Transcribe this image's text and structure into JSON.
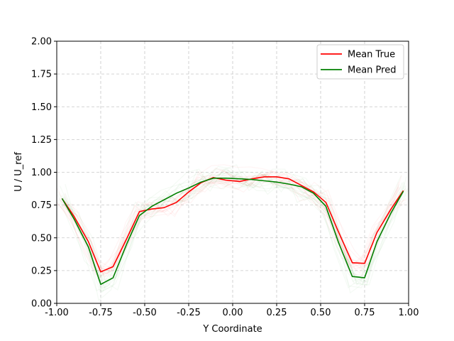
{
  "chart_data": {
    "type": "line",
    "title": "",
    "xlabel": "Y Coordinate",
    "ylabel": "U / U_ref",
    "xlim": [
      -1.0,
      1.0
    ],
    "ylim": [
      0.0,
      2.0
    ],
    "xticks": [
      "-1.00",
      "-0.75",
      "-0.50",
      "-0.25",
      "0.00",
      "0.25",
      "0.50",
      "0.75",
      "1.00"
    ],
    "yticks": [
      "0.00",
      "0.25",
      "0.50",
      "0.75",
      "1.00",
      "1.25",
      "1.50",
      "1.75",
      "2.00"
    ],
    "grid": true,
    "legend_position": "top-right",
    "x": [
      -0.97,
      -0.9,
      -0.82,
      -0.75,
      -0.68,
      -0.6,
      -0.53,
      -0.46,
      -0.39,
      -0.32,
      -0.25,
      -0.18,
      -0.11,
      -0.04,
      0.04,
      0.11,
      0.18,
      0.25,
      0.32,
      0.39,
      0.46,
      0.53,
      0.6,
      0.68,
      0.75,
      0.82,
      0.9,
      0.97
    ],
    "series": [
      {
        "name": "Mean True",
        "color": "#ff0000",
        "values": [
          0.8,
          0.66,
          0.47,
          0.24,
          0.28,
          0.5,
          0.7,
          0.72,
          0.73,
          0.77,
          0.85,
          0.92,
          0.96,
          0.94,
          0.93,
          0.95,
          0.965,
          0.965,
          0.95,
          0.9,
          0.85,
          0.77,
          0.55,
          0.31,
          0.305,
          0.54,
          0.72,
          0.86
        ]
      },
      {
        "name": "Mean Pred",
        "color": "#008000",
        "values": [
          0.8,
          0.64,
          0.43,
          0.145,
          0.195,
          0.46,
          0.67,
          0.74,
          0.79,
          0.84,
          0.88,
          0.925,
          0.955,
          0.955,
          0.95,
          0.945,
          0.935,
          0.925,
          0.91,
          0.89,
          0.84,
          0.74,
          0.47,
          0.205,
          0.195,
          0.47,
          0.69,
          0.855
        ]
      }
    ]
  }
}
